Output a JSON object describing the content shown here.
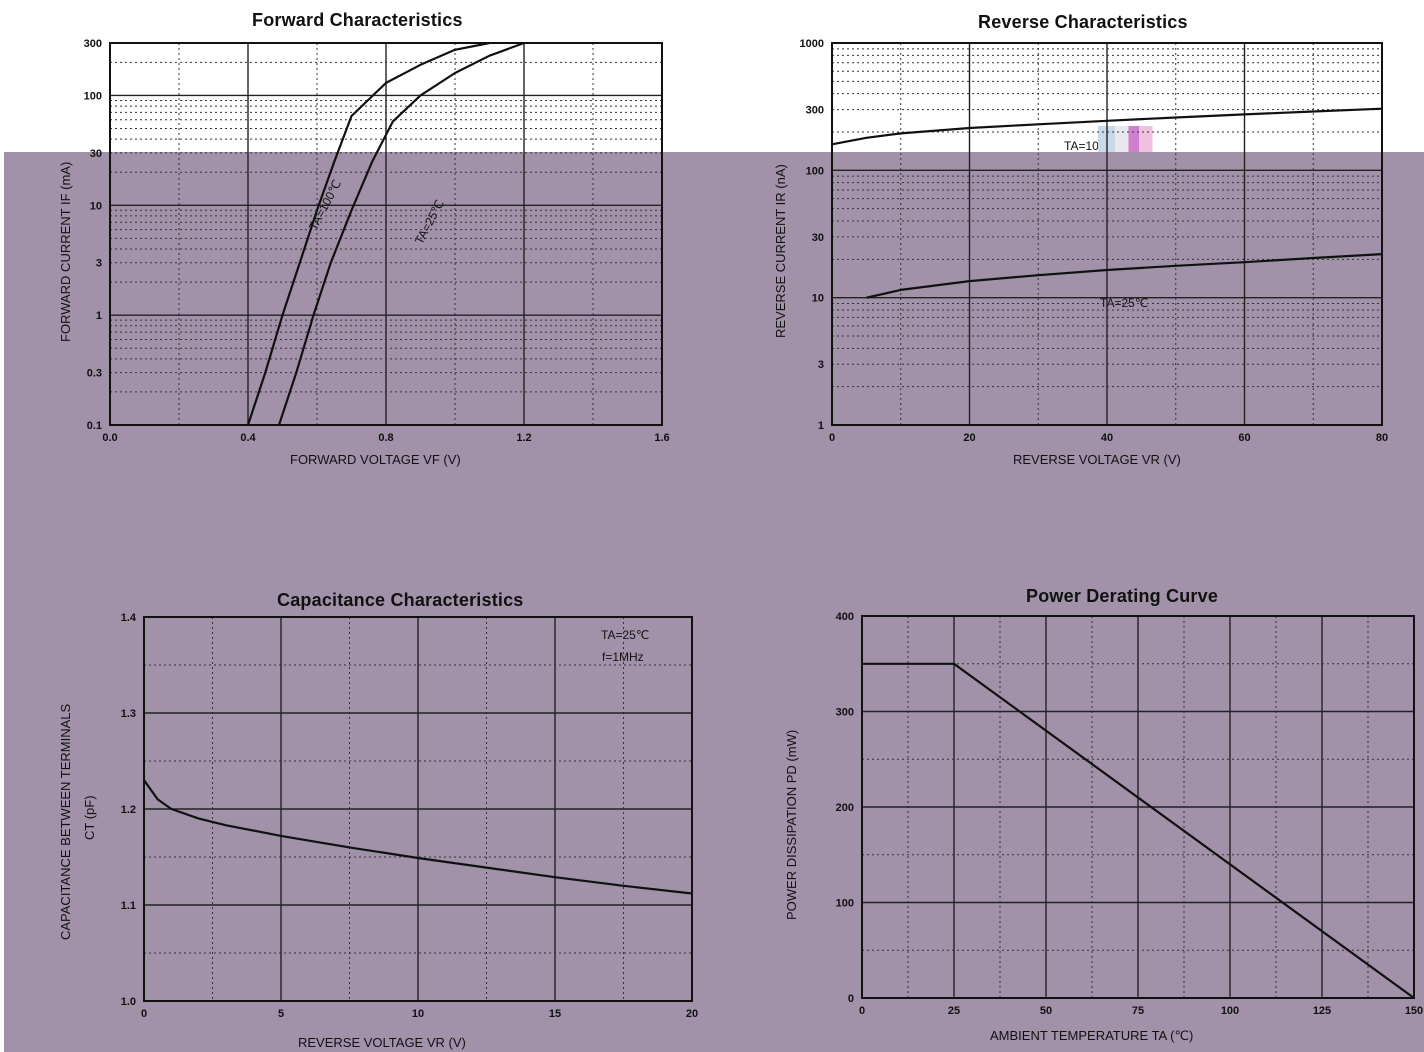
{
  "charts_meta": {
    "forward": {
      "title": "Forward    Characteristics",
      "xlabel": "FORWARD VOLTAGE    VF    (V)",
      "ylabel": "FORWARD CURRENT    IF    (mA)",
      "note1": "TA=100℃",
      "note2": "TA=25℃"
    },
    "reverse": {
      "title": "Reverse    Characteristics",
      "xlabel": "REVERSE VOLTAGE    VR    (V)",
      "ylabel": "REVERSE CURRENT    IR    (nA)",
      "note1": "TA=100℃",
      "note2": "TA=25℃"
    },
    "capacitance": {
      "title": "Capacitance Characteristics",
      "xlabel": "REVERSE VOLTAGE    VR    (V)",
      "ylabel1": "CAPACITANCE BETWEEN TERMINALS",
      "ylabel2": "CT    (pF)",
      "note1": "TA=25℃",
      "note2": "f=1MHz"
    },
    "power": {
      "title": "Power Derating Curve",
      "xlabel": "AMBIENT TEMPERATURE    TA    (℃)",
      "ylabel": "POWER DISSIPATION    PD    (mW)"
    }
  },
  "chart_data": [
    {
      "type": "line",
      "title": "Forward    Characteristics",
      "xlabel": "FORWARD VOLTAGE    VF    (V)",
      "ylabel": "FORWARD CURRENT    IF    (mA)",
      "xlim": [
        0.0,
        1.6
      ],
      "ylim": [
        0.1,
        300
      ],
      "yscale": "log",
      "xticks": [
        "0.0",
        "0.4",
        "0.8",
        "1.2",
        "1.6"
      ],
      "yticks": [
        "0.1",
        "0.3",
        "1",
        "3",
        "10",
        "30",
        "100",
        "300"
      ],
      "series": [
        {
          "name": "TA=100℃",
          "x": [
            0.4,
            0.45,
            0.5,
            0.55,
            0.6,
            0.65,
            0.7,
            0.8,
            0.9,
            1.0,
            1.1
          ],
          "y": [
            0.1,
            0.3,
            1,
            3,
            9,
            25,
            65,
            130,
            190,
            260,
            320
          ]
        },
        {
          "name": "TA=25℃",
          "x": [
            0.49,
            0.54,
            0.59,
            0.64,
            0.7,
            0.76,
            0.82,
            0.9,
            1.0,
            1.1,
            1.2
          ],
          "y": [
            0.1,
            0.3,
            1,
            3,
            9,
            25,
            58,
            100,
            160,
            230,
            300
          ]
        }
      ],
      "grid": true
    },
    {
      "type": "line",
      "title": "Reverse    Characteristics",
      "xlabel": "REVERSE VOLTAGE    VR    (V)",
      "ylabel": "REVERSE CURRENT    IR    (nA)",
      "xlim": [
        0,
        80
      ],
      "ylim": [
        1,
        1000
      ],
      "yscale": "log",
      "xticks": [
        "0",
        "20",
        "40",
        "60",
        "80"
      ],
      "yticks": [
        "1",
        "3",
        "10",
        "30",
        "100",
        "300",
        "1000"
      ],
      "series": [
        {
          "name": "TA=100℃",
          "x": [
            0,
            5,
            10,
            20,
            30,
            40,
            50,
            60,
            70,
            80
          ],
          "y": [
            160,
            180,
            195,
            215,
            230,
            245,
            260,
            275,
            290,
            305
          ]
        },
        {
          "name": "TA=25℃",
          "x": [
            5,
            10,
            20,
            30,
            40,
            50,
            60,
            70,
            80
          ],
          "y": [
            10,
            11.5,
            13.5,
            15,
            16.5,
            17.8,
            19,
            20.5,
            22
          ]
        }
      ],
      "grid": true
    },
    {
      "type": "line",
      "title": "Capacitance Characteristics",
      "xlabel": "REVERSE VOLTAGE    VR    (V)",
      "ylabel": "CAPACITANCE BETWEEN TERMINALS CT (pF)",
      "xlim": [
        0,
        20
      ],
      "ylim": [
        1.0,
        1.4
      ],
      "xticks": [
        "0",
        "5",
        "10",
        "15",
        "20"
      ],
      "yticks": [
        "1.0",
        "1.1",
        "1.2",
        "1.3",
        "1.4"
      ],
      "series": [
        {
          "name": "",
          "x": [
            0,
            0.5,
            1,
            2,
            3,
            5,
            7.5,
            10,
            12.5,
            15,
            17.5,
            20
          ],
          "y": [
            1.23,
            1.21,
            1.2,
            1.19,
            1.183,
            1.172,
            1.16,
            1.149,
            1.139,
            1.129,
            1.12,
            1.112
          ]
        }
      ],
      "grid": true
    },
    {
      "type": "line",
      "title": "Power Derating Curve",
      "xlabel": "AMBIENT TEMPERATURE    TA    (℃)",
      "ylabel": "POWER DISSIPATION    PD    (mW)",
      "xlim": [
        0,
        150
      ],
      "ylim": [
        0,
        400
      ],
      "xticks": [
        "0",
        "25",
        "50",
        "75",
        "100",
        "125",
        "150"
      ],
      "yticks": [
        "0",
        "100",
        "200",
        "300",
        "400"
      ],
      "series": [
        {
          "name": "",
          "x": [
            0,
            25,
            150
          ],
          "y": [
            350,
            350,
            0
          ]
        }
      ],
      "grid": true
    }
  ]
}
